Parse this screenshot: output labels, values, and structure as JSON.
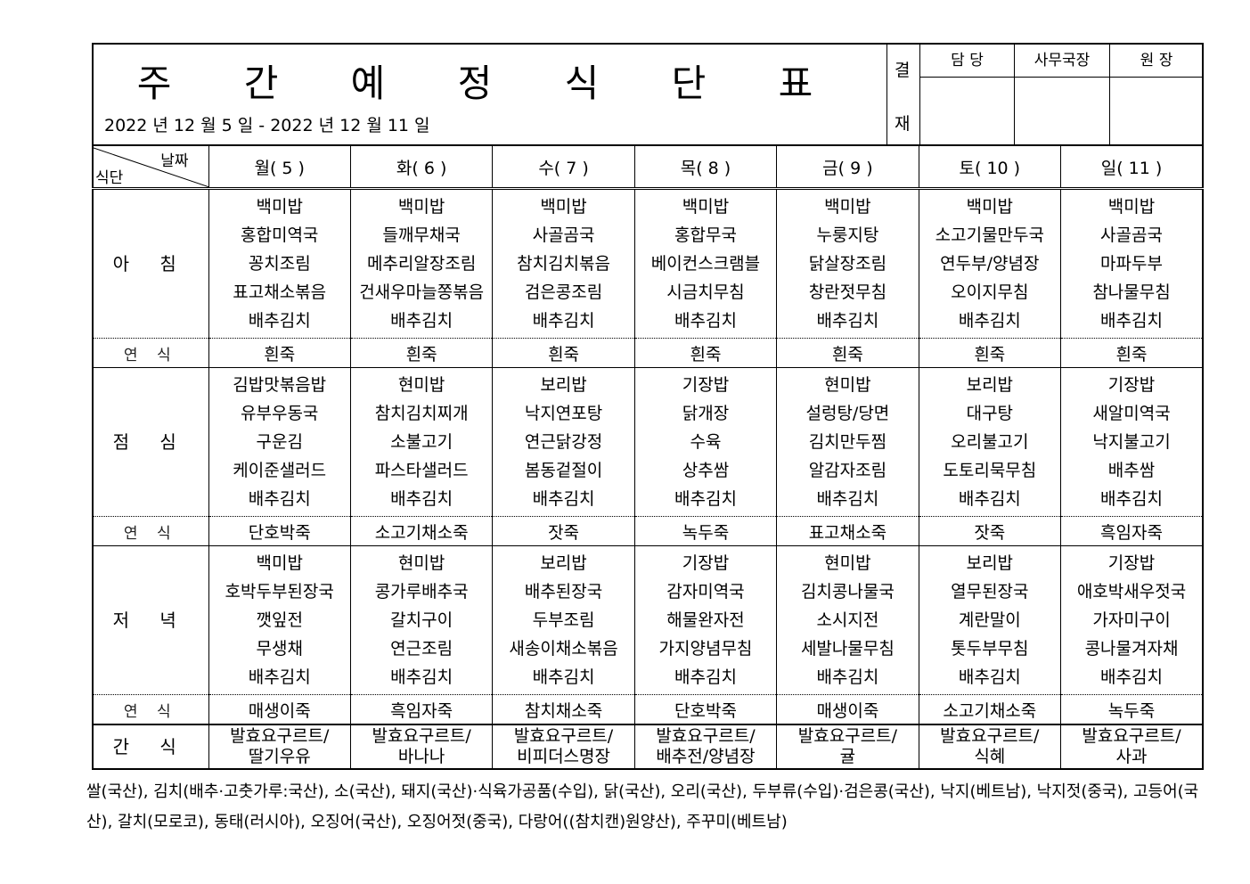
{
  "title": "주 간 예 정 식 단 표",
  "date_range": "2022 년 12 월 5 일 - 2022 년 12 월 11 일",
  "approval": {
    "label_top": "결",
    "label_bottom": "재",
    "roles": [
      "담  당",
      "사무국장",
      "원  장"
    ]
  },
  "corner": {
    "top": "날짜",
    "bottom": "식단"
  },
  "days": [
    "월( 5 )",
    "화( 6 )",
    "수( 7 )",
    "목( 8 )",
    "금( 9 )",
    "토( 10 )",
    "일( 11 )"
  ],
  "rows": [
    {
      "label": "아 침",
      "type": "meal",
      "cells": [
        [
          "백미밥",
          "홍합미역국",
          "꽁치조림",
          "표고채소볶음",
          "배추김치"
        ],
        [
          "백미밥",
          "들깨무채국",
          "메추리알장조림",
          "건새우마늘쫑볶음",
          "배추김치"
        ],
        [
          "백미밥",
          "사골곰국",
          "참치김치볶음",
          "검은콩조림",
          "배추김치"
        ],
        [
          "백미밥",
          "홍합무국",
          "베이컨스크램블",
          "시금치무침",
          "배추김치"
        ],
        [
          "백미밥",
          "누룽지탕",
          "닭살장조림",
          "창란젓무침",
          "배추김치"
        ],
        [
          "백미밥",
          "소고기물만두국",
          "연두부/양념장",
          "오이지무침",
          "배추김치"
        ],
        [
          "백미밥",
          "사골곰국",
          "마파두부",
          "참나물무침",
          "배추김치"
        ]
      ]
    },
    {
      "label": "연 식",
      "type": "ys",
      "cells": [
        "흰죽",
        "흰죽",
        "흰죽",
        "흰죽",
        "흰죽",
        "흰죽",
        "흰죽"
      ]
    },
    {
      "label": "점 심",
      "type": "meal",
      "cells": [
        [
          "김밥맛볶음밥",
          "유부우동국",
          "구운김",
          "케이준샐러드",
          "배추김치"
        ],
        [
          "현미밥",
          "참치김치찌개",
          "소불고기",
          "파스타샐러드",
          "배추김치"
        ],
        [
          "보리밥",
          "낙지연포탕",
          "연근닭강정",
          "봄동겉절이",
          "배추김치"
        ],
        [
          "기장밥",
          "닭개장",
          "수육",
          "상추쌈",
          "배추김치"
        ],
        [
          "현미밥",
          "설렁탕/당면",
          "김치만두찜",
          "알감자조림",
          "배추김치"
        ],
        [
          "보리밥",
          "대구탕",
          "오리불고기",
          "도토리묵무침",
          "배추김치"
        ],
        [
          "기장밥",
          "새알미역국",
          "낙지불고기",
          "배추쌈",
          "배추김치"
        ]
      ]
    },
    {
      "label": "연 식",
      "type": "ys",
      "cells": [
        "단호박죽",
        "소고기채소죽",
        "잣죽",
        "녹두죽",
        "표고채소죽",
        "잣죽",
        "흑임자죽"
      ]
    },
    {
      "label": "저 녁",
      "type": "meal",
      "cells": [
        [
          "백미밥",
          "호박두부된장국",
          "깻잎전",
          "무생채",
          "배추김치"
        ],
        [
          "현미밥",
          "콩가루배추국",
          "갈치구이",
          "연근조림",
          "배추김치"
        ],
        [
          "보리밥",
          "배추된장국",
          "두부조림",
          "새송이채소볶음",
          "배추김치"
        ],
        [
          "기장밥",
          "감자미역국",
          "해물완자전",
          "가지양념무침",
          "배추김치"
        ],
        [
          "현미밥",
          "김치콩나물국",
          "소시지전",
          "세발나물무침",
          "배추김치"
        ],
        [
          "보리밥",
          "열무된장국",
          "계란말이",
          "톳두부무침",
          "배추김치"
        ],
        [
          "기장밥",
          "애호박새우젓국",
          "가자미구이",
          "콩나물겨자채",
          "배추김치"
        ]
      ]
    },
    {
      "label": "연 식",
      "type": "ys",
      "cells": [
        "매생이죽",
        "흑임자죽",
        "참치채소죽",
        "단호박죽",
        "매생이죽",
        "소고기채소죽",
        "녹두죽"
      ]
    },
    {
      "label": "간 식",
      "type": "snack",
      "cells": [
        [
          "발효요구르트/",
          "딸기우유"
        ],
        [
          "발효요구르트/",
          "바나나"
        ],
        [
          "발효요구르트/",
          "비피더스명장"
        ],
        [
          "발효요구르트/",
          "배추전/양념장"
        ],
        [
          "발효요구르트/",
          "귤"
        ],
        [
          "발효요구르트/",
          "식혜"
        ],
        [
          "발효요구르트/",
          "사과"
        ]
      ]
    }
  ],
  "origin_note": "쌀(국산), 김치(배추·고춧가루:국산), 소(국산), 돼지(국산)·식육가공품(수입), 닭(국산), 오리(국산), 두부류(수입)·검은콩(국산), 낙지(베트남), 낙지젓(중국), 고등어(국산), 갈치(모로코), 동태(러시아), 오징어(국산), 오징어젓(중국), 다랑어((참치캔)원양산), 주꾸미(베트남)"
}
